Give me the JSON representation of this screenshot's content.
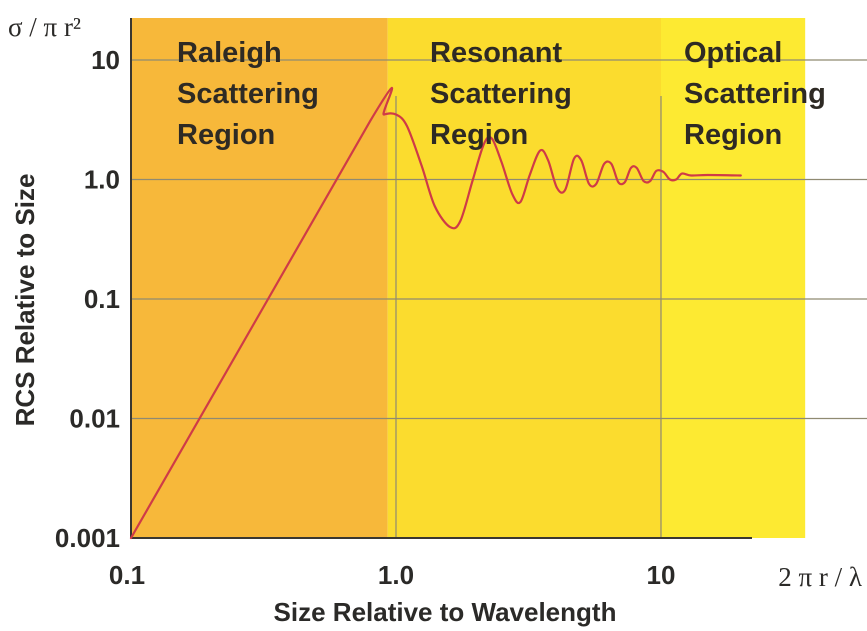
{
  "chart_data": {
    "type": "line",
    "scale": "log-log",
    "y_unit_label": "σ / π r²",
    "x_unit_label": "2 π r / λ",
    "xlabel": "Size Relative to Wavelength",
    "ylabel": "RCS Relative to Size",
    "xlim": [
      0.1,
      35
    ],
    "ylim": [
      0.001,
      20
    ],
    "x_ticks": [
      {
        "value": 0.1,
        "label": "0.1"
      },
      {
        "value": 1.0,
        "label": "1.0"
      },
      {
        "value": 10,
        "label": "10"
      }
    ],
    "y_ticks": [
      {
        "value": 0.001,
        "label": "0.001"
      },
      {
        "value": 0.01,
        "label": "0.01"
      },
      {
        "value": 0.1,
        "label": "0.1"
      },
      {
        "value": 1.0,
        "label": "1.0"
      },
      {
        "value": 10,
        "label": "10"
      }
    ],
    "grid": true,
    "regions": [
      {
        "lines": [
          "Raleigh",
          "Scattering",
          "Region"
        ],
        "x_start": 0.1,
        "x_end": 0.93,
        "color": "#f7b83a"
      },
      {
        "lines": [
          "Resonant",
          "Scattering",
          "Region"
        ],
        "x_start": 0.93,
        "x_end": 10,
        "color": "#fbdc2e"
      },
      {
        "lines": [
          "Optical",
          "Scattering",
          "Region"
        ],
        "x_start": 10,
        "x_end": 35,
        "color": "#fdea32"
      }
    ],
    "line_color": "#cf3b47",
    "series": [
      {
        "points": [
          [
            0.1,
            0.001
          ],
          [
            0.8,
            3.1
          ],
          [
            0.9,
            3.5
          ],
          [
            1.0,
            3.5
          ],
          [
            1.1,
            2.8
          ],
          [
            1.25,
            1.3
          ],
          [
            1.4,
            0.6
          ],
          [
            1.6,
            0.4
          ],
          [
            1.75,
            0.45
          ],
          [
            1.95,
            1.0
          ],
          [
            2.15,
            2.0
          ],
          [
            2.3,
            2.2
          ],
          [
            2.5,
            1.4
          ],
          [
            2.75,
            0.75
          ],
          [
            2.95,
            0.65
          ],
          [
            3.2,
            1.1
          ],
          [
            3.5,
            1.75
          ],
          [
            3.75,
            1.45
          ],
          [
            4.05,
            0.85
          ],
          [
            4.35,
            0.82
          ],
          [
            4.7,
            1.5
          ],
          [
            5.0,
            1.45
          ],
          [
            5.35,
            0.92
          ],
          [
            5.7,
            0.92
          ],
          [
            6.1,
            1.35
          ],
          [
            6.5,
            1.35
          ],
          [
            6.9,
            0.95
          ],
          [
            7.3,
            0.95
          ],
          [
            7.7,
            1.25
          ],
          [
            8.1,
            1.25
          ],
          [
            8.6,
            0.97
          ],
          [
            9.1,
            0.97
          ],
          [
            9.6,
            1.18
          ],
          [
            10.2,
            1.16
          ],
          [
            10.8,
            1.0
          ],
          [
            11.4,
            1.0
          ],
          [
            12.0,
            1.12
          ],
          [
            13,
            1.08
          ],
          [
            15,
            1.09
          ],
          [
            20,
            1.08
          ]
        ]
      }
    ]
  }
}
